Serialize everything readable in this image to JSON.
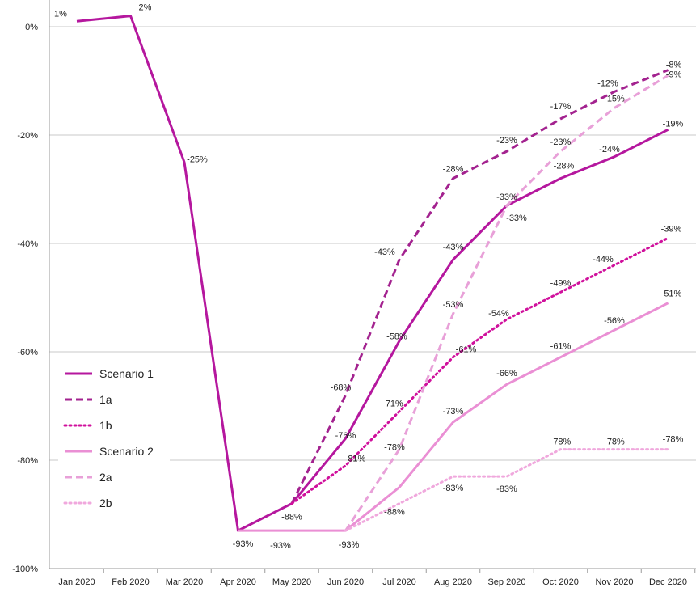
{
  "chart_data": {
    "type": "line",
    "title": "",
    "xlabel": "",
    "ylabel": "",
    "ylim": [
      -100,
      0
    ],
    "y_ticks": [
      0,
      -20,
      -40,
      -60,
      -80,
      -100
    ],
    "y_tick_labels": [
      "0%",
      "-20%",
      "-40%",
      "-60%",
      "-80%",
      "-100%"
    ],
    "grid": "horizontal",
    "legend_position": "lower-left",
    "categories": [
      "Jan 2020",
      "Feb 2020",
      "Mar 2020",
      "Apr 2020",
      "May 2020",
      "Jun 2020",
      "Jul 2020",
      "Aug 2020",
      "Sep 2020",
      "Oct 2020",
      "Nov 2020",
      "Dec 2020"
    ],
    "series": [
      {
        "name": "Scenario 1",
        "color": "#b5179e",
        "dash": "solid",
        "values": [
          1,
          2,
          -25,
          -93,
          -88,
          -76,
          -58,
          -43,
          -33,
          -28,
          -24,
          -19
        ],
        "labels": [
          "1%",
          "2%",
          "-25%",
          "-93%",
          "-88%",
          "-76%",
          "-58%",
          "-43%",
          "-33%",
          "-28%",
          "-24%",
          "-19%"
        ]
      },
      {
        "name": "1a",
        "color": "#a3228f",
        "dash": "dashed",
        "values": [
          null,
          null,
          null,
          null,
          -88,
          -68,
          -43,
          -28,
          -23,
          -17,
          -12,
          -8
        ],
        "labels": [
          "",
          "",
          "",
          "",
          "",
          "-68%",
          "-43%",
          "-28%",
          "-23%",
          "-17%",
          "-12%",
          "-8%"
        ]
      },
      {
        "name": "1b",
        "color": "#d0109c",
        "dash": "dotted",
        "values": [
          null,
          null,
          null,
          null,
          -88,
          -81,
          -71,
          -61,
          -54,
          -49,
          -44,
          -39
        ],
        "labels": [
          "",
          "",
          "",
          "",
          "",
          "-81%",
          "-71%",
          "-61%",
          "-54%",
          "-49%",
          "-44%",
          "-39%"
        ]
      },
      {
        "name": "Scenario 2",
        "color": "#ea8fd4",
        "dash": "solid",
        "values": [
          null,
          null,
          null,
          -93,
          -93,
          -93,
          -85,
          -73,
          -66,
          -61,
          -56,
          -51
        ],
        "labels": [
          "",
          "",
          "",
          "",
          "-93%",
          "-93%",
          "",
          "-73%",
          "-66%",
          "-61%",
          "-56%",
          "-51%"
        ]
      },
      {
        "name": "2a",
        "color": "#e8a0d8",
        "dash": "dashed",
        "values": [
          null,
          null,
          null,
          null,
          null,
          -93,
          -78,
          -53,
          -33,
          -23,
          -15,
          -9
        ],
        "labels": [
          "",
          "",
          "",
          "",
          "",
          "",
          "-78%",
          "-53%",
          "-33%",
          "-23%",
          "-15%",
          "-9%"
        ]
      },
      {
        "name": "2b",
        "color": "#f0a8dd",
        "dash": "dotted",
        "values": [
          null,
          null,
          null,
          null,
          null,
          -93,
          -88,
          -83,
          -83,
          -78,
          -78,
          -78
        ],
        "labels": [
          "",
          "",
          "",
          "",
          "",
          "",
          "-88%",
          "-83%",
          "-83%",
          "-78%",
          "-78%",
          "-78%"
        ]
      }
    ]
  }
}
